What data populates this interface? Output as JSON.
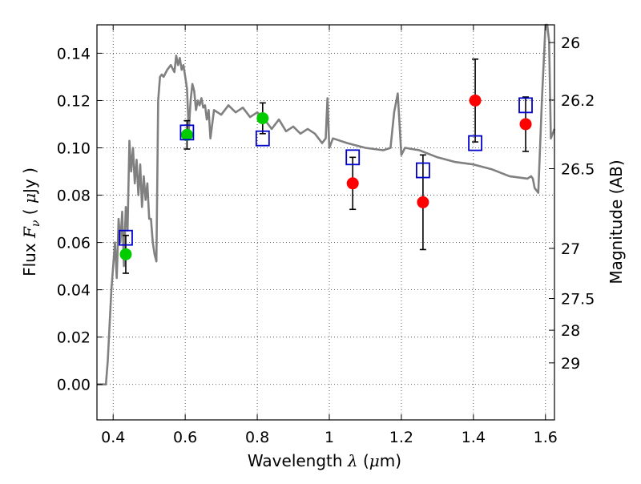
{
  "colors": {
    "model": "#808080",
    "detection_green": "#00cc00",
    "detection_red": "#ff0000",
    "model_flux_box": "#0000cc",
    "error_bar": "#000000",
    "grid": "#333333"
  },
  "chart_data": {
    "type": "scatter",
    "xlabel": {
      "prefix": "Wavelength  ",
      "symbol": "λ",
      "unit_open": " (",
      "unit_mu": "μ",
      "unit_rest": "m)"
    },
    "ylabel": {
      "prefix": "Flux  ",
      "symbol": "F",
      "subscript": "ν",
      "unit_open": "  ( ",
      "unit_mu": "μ",
      "unit_rest": "Jy )"
    },
    "y2label": "Magnitude (AB)",
    "xlim": [
      0.355,
      1.625
    ],
    "ylim": [
      -0.015,
      0.152
    ],
    "x_ticks": [
      0.4,
      0.6,
      0.8,
      1.0,
      1.2,
      1.4,
      1.6
    ],
    "x_tick_labels": [
      "0.4",
      "0.6",
      "0.8",
      "1",
      "1.2",
      "1.4",
      "1.6"
    ],
    "y_ticks": [
      0.0,
      0.02,
      0.04,
      0.06,
      0.08,
      0.1,
      0.12,
      0.14
    ],
    "y_tick_labels": [
      "0.00",
      "0.02",
      "0.04",
      "0.06",
      "0.08",
      "0.10",
      "0.12",
      "0.14"
    ],
    "right_axis_ticks": [
      {
        "label": "26",
        "flux": 0.1445
      },
      {
        "label": "26.2",
        "flux": 0.1202
      },
      {
        "label": "26.5",
        "flux": 0.0912
      },
      {
        "label": "27",
        "flux": 0.0575
      },
      {
        "label": "27.5",
        "flux": 0.0363
      },
      {
        "label": "28",
        "flux": 0.0229
      },
      {
        "label": "29",
        "flux": 0.0091
      }
    ],
    "grid": true,
    "model_spectrum": {
      "x": [
        0.355,
        0.38,
        0.385,
        0.395,
        0.405,
        0.41,
        0.415,
        0.42,
        0.425,
        0.43,
        0.435,
        0.44,
        0.445,
        0.45,
        0.455,
        0.46,
        0.465,
        0.47,
        0.475,
        0.48,
        0.485,
        0.49,
        0.495,
        0.5,
        0.505,
        0.51,
        0.515,
        0.52,
        0.525,
        0.53,
        0.535,
        0.54,
        0.55,
        0.56,
        0.57,
        0.575,
        0.58,
        0.585,
        0.59,
        0.595,
        0.6,
        0.605,
        0.61,
        0.615,
        0.62,
        0.625,
        0.63,
        0.635,
        0.64,
        0.645,
        0.65,
        0.655,
        0.66,
        0.665,
        0.67,
        0.68,
        0.7,
        0.72,
        0.74,
        0.76,
        0.78,
        0.8,
        0.82,
        0.84,
        0.86,
        0.88,
        0.9,
        0.92,
        0.94,
        0.96,
        0.98,
        0.99,
        0.995,
        1.0,
        1.01,
        1.05,
        1.1,
        1.15,
        1.17,
        1.18,
        1.19,
        1.2,
        1.21,
        1.25,
        1.3,
        1.35,
        1.4,
        1.45,
        1.5,
        1.55,
        1.56,
        1.565,
        1.57,
        1.58,
        1.59,
        1.6,
        1.605,
        1.61,
        1.615,
        1.625
      ],
      "y": [
        0.0,
        0.0,
        0.01,
        0.04,
        0.06,
        0.045,
        0.07,
        0.06,
        0.073,
        0.05,
        0.075,
        0.065,
        0.103,
        0.09,
        0.1,
        0.085,
        0.095,
        0.08,
        0.093,
        0.075,
        0.088,
        0.078,
        0.085,
        0.07,
        0.07,
        0.06,
        0.055,
        0.052,
        0.12,
        0.13,
        0.131,
        0.13,
        0.133,
        0.135,
        0.132,
        0.139,
        0.135,
        0.138,
        0.133,
        0.135,
        0.13,
        0.125,
        0.107,
        0.12,
        0.127,
        0.124,
        0.116,
        0.12,
        0.118,
        0.121,
        0.117,
        0.118,
        0.112,
        0.116,
        0.104,
        0.116,
        0.114,
        0.118,
        0.115,
        0.117,
        0.113,
        0.115,
        0.112,
        0.108,
        0.112,
        0.107,
        0.109,
        0.106,
        0.108,
        0.106,
        0.102,
        0.104,
        0.121,
        0.1,
        0.104,
        0.102,
        0.1,
        0.099,
        0.1,
        0.115,
        0.123,
        0.097,
        0.1,
        0.099,
        0.096,
        0.094,
        0.093,
        0.091,
        0.088,
        0.087,
        0.088,
        0.087,
        0.083,
        0.081,
        0.12,
        0.152,
        0.152,
        0.145,
        0.104,
        0.108
      ]
    },
    "detections_green": [
      {
        "x": 0.435,
        "y": 0.055,
        "err": 0.008
      },
      {
        "x": 0.605,
        "y": 0.1055,
        "err": 0.006
      },
      {
        "x": 0.815,
        "y": 0.1125,
        "err": 0.0065
      }
    ],
    "detections_red": [
      {
        "x": 1.065,
        "y": 0.085,
        "err": 0.011
      },
      {
        "x": 1.26,
        "y": 0.077,
        "err": 0.02
      },
      {
        "x": 1.405,
        "y": 0.12,
        "err": 0.0175
      },
      {
        "x": 1.545,
        "y": 0.11,
        "err": 0.0115
      }
    ],
    "model_flux_boxes": [
      {
        "x": 0.435,
        "y": 0.062
      },
      {
        "x": 0.605,
        "y": 0.1065
      },
      {
        "x": 0.815,
        "y": 0.104
      },
      {
        "x": 1.065,
        "y": 0.096
      },
      {
        "x": 1.26,
        "y": 0.0905
      },
      {
        "x": 1.405,
        "y": 0.102
      },
      {
        "x": 1.545,
        "y": 0.118
      }
    ]
  }
}
